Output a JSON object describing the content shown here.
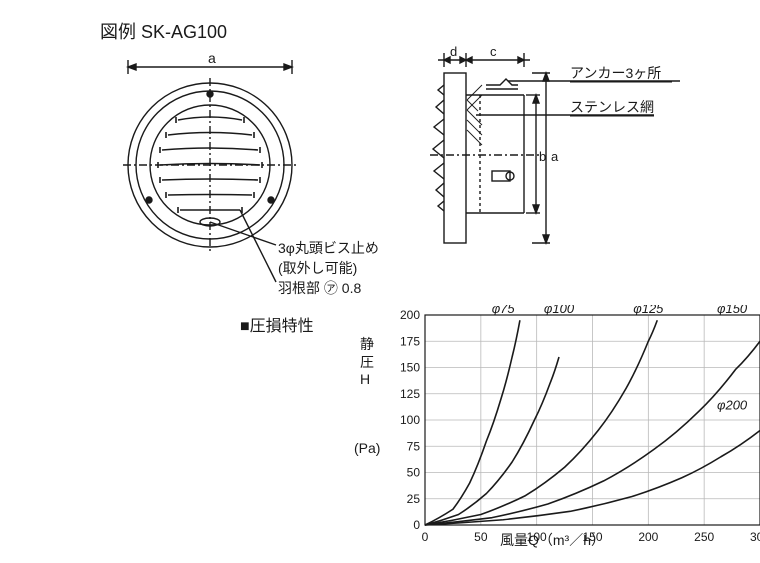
{
  "title": "図例 SK-AG100",
  "front": {
    "dim_top": "a",
    "callout_1": "3φ丸頭ビス止め",
    "callout_2": "(取外し可能)",
    "callout_3": "羽根部 ㋐ 0.8"
  },
  "side": {
    "dim_d": "d",
    "dim_c": "c",
    "dim_a": "a",
    "dim_b": "b",
    "callout_anchor": "アンカー3ヶ所",
    "callout_mesh": "ステンレス網"
  },
  "chart": {
    "title_prefix": "■",
    "title_text": "圧損特性",
    "ylabel_1": "静",
    "ylabel_2": "圧",
    "ylabel_3": "H",
    "yunit": "(Pa)",
    "xlabel": "風量Q（m³／h）",
    "xlim": [
      0,
      300
    ],
    "ylim": [
      0,
      200
    ],
    "xticks": [
      0,
      50,
      100,
      150,
      200,
      250,
      300
    ],
    "yticks": [
      0,
      25,
      50,
      75,
      100,
      125,
      150,
      175,
      200
    ],
    "grid_color": "#b9b9b9",
    "axis_color": "#1a1a1a",
    "curve_color": "#1a1a1a",
    "curve_width": 1.6,
    "series": [
      {
        "label": "φ75",
        "label_x": 70,
        "label_y": 200,
        "pts": [
          [
            0,
            0
          ],
          [
            25,
            15
          ],
          [
            40,
            40
          ],
          [
            55,
            80
          ],
          [
            68,
            120
          ],
          [
            78,
            160
          ],
          [
            85,
            195
          ]
        ]
      },
      {
        "label": "φ100",
        "label_x": 120,
        "label_y": 200,
        "pts": [
          [
            0,
            0
          ],
          [
            30,
            10
          ],
          [
            55,
            30
          ],
          [
            78,
            60
          ],
          [
            98,
            100
          ],
          [
            112,
            135
          ],
          [
            120,
            160
          ]
        ]
      },
      {
        "label": "φ125",
        "label_x": 200,
        "label_y": 200,
        "pts": [
          [
            0,
            0
          ],
          [
            50,
            10
          ],
          [
            90,
            28
          ],
          [
            125,
            55
          ],
          [
            155,
            90
          ],
          [
            180,
            130
          ],
          [
            200,
            175
          ],
          [
            208,
            195
          ]
        ]
      },
      {
        "label": "φ150",
        "label_x": 275,
        "label_y": 200,
        "pts": [
          [
            0,
            0
          ],
          [
            60,
            7
          ],
          [
            110,
            20
          ],
          [
            160,
            42
          ],
          [
            205,
            72
          ],
          [
            245,
            108
          ],
          [
            278,
            148
          ],
          [
            300,
            175
          ]
        ]
      },
      {
        "label": "φ200",
        "label_x": 275,
        "label_y": 108,
        "pts": [
          [
            0,
            0
          ],
          [
            70,
            5
          ],
          [
            130,
            13
          ],
          [
            185,
            27
          ],
          [
            230,
            45
          ],
          [
            265,
            65
          ],
          [
            300,
            90
          ]
        ]
      }
    ],
    "tick_fontsize": 12,
    "label_fontsize": 13
  },
  "style": {
    "line_color": "#1a1a1a",
    "thin": 1.2,
    "font_main": 14
  }
}
